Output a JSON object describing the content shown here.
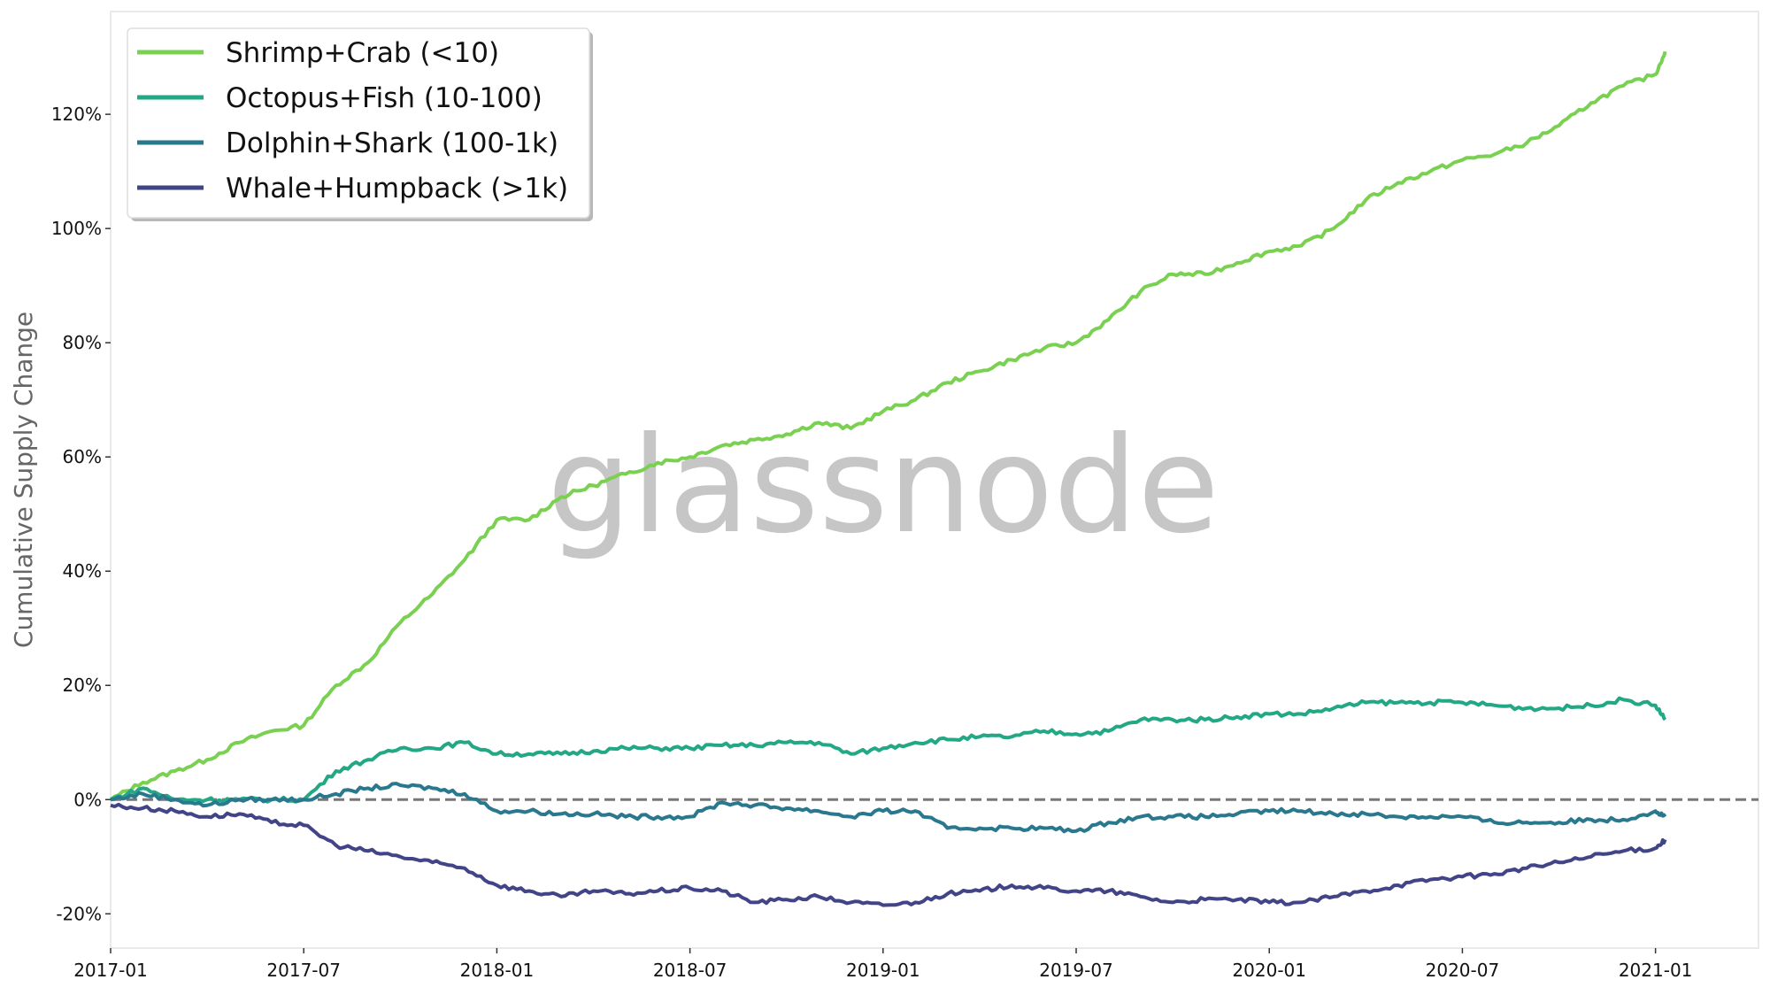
{
  "chart_data": {
    "type": "line",
    "title": "",
    "xlabel": "",
    "ylabel": "Cumulative Supply Change",
    "watermark": "glassnode",
    "x_unit": "months since 2017-01",
    "xlim": [
      0,
      51.2
    ],
    "ylim": [
      -26,
      138
    ],
    "x_ticks": [
      {
        "label": "2017-01",
        "month": 0
      },
      {
        "label": "2017-07",
        "month": 6
      },
      {
        "label": "2018-01",
        "month": 12
      },
      {
        "label": "2018-07",
        "month": 18
      },
      {
        "label": "2019-01",
        "month": 24
      },
      {
        "label": "2019-07",
        "month": 30
      },
      {
        "label": "2020-01",
        "month": 36
      },
      {
        "label": "2020-07",
        "month": 42
      },
      {
        "label": "2021-01",
        "month": 48
      }
    ],
    "y_ticks": [
      {
        "label": "-20%",
        "value": -20
      },
      {
        "label": "0%",
        "value": 0
      },
      {
        "label": "20%",
        "value": 20
      },
      {
        "label": "40%",
        "value": 40
      },
      {
        "label": "60%",
        "value": 60
      },
      {
        "label": "80%",
        "value": 80
      },
      {
        "label": "100%",
        "value": 100
      },
      {
        "label": "120%",
        "value": 120
      }
    ],
    "reference_line": {
      "value": 0,
      "style": "dashed",
      "color": "#777777"
    },
    "legend_position": "top-left",
    "series": [
      {
        "name": "Shrimp+Crab (<10)",
        "color": "#7ad151",
        "values": [
          0,
          3,
          5,
          7,
          10,
          12,
          13,
          20,
          24,
          31,
          36,
          42,
          49,
          49,
          53,
          55,
          57,
          59,
          60,
          62,
          63,
          64,
          66,
          65,
          68,
          70,
          73,
          75,
          77,
          79,
          80,
          84,
          89,
          92,
          92,
          94,
          96,
          97,
          100,
          105,
          108,
          110,
          112,
          113,
          115,
          118,
          122,
          125,
          127,
          131
        ]
      },
      {
        "name": "Octopus+Fish (10-100)",
        "color": "#22a884",
        "values": [
          0,
          2,
          0,
          0,
          0,
          0,
          0,
          5,
          7,
          9,
          9,
          10,
          8,
          8,
          8,
          8.5,
          9,
          9,
          9,
          9.5,
          9.5,
          10,
          10,
          8,
          9,
          10,
          10.5,
          11,
          11,
          12,
          11.5,
          12,
          14,
          14,
          14,
          14.5,
          15,
          15,
          16,
          17,
          17,
          17,
          17,
          16.5,
          16,
          16,
          16.5,
          17.5,
          16.5,
          14
        ]
      },
      {
        "name": "Dolphin+Shark (100-1k)",
        "color": "#2a788e",
        "values": [
          0,
          1,
          0,
          -1,
          0,
          0,
          0,
          1,
          2,
          2.5,
          2,
          1,
          -2,
          -2,
          -2.5,
          -2.5,
          -3,
          -3,
          -3,
          -0.5,
          -1,
          -1.5,
          -2,
          -3,
          -2,
          -2,
          -5,
          -5,
          -5,
          -5,
          -5.5,
          -4,
          -3,
          -3,
          -3,
          -2.5,
          -2,
          -2,
          -2.5,
          -2.5,
          -3,
          -3,
          -3,
          -4,
          -4,
          -4,
          -3.5,
          -3.5,
          -2,
          -3
        ]
      },
      {
        "name": "Whale+Humpback (>1k)",
        "color": "#414487",
        "values": [
          -1,
          -1.5,
          -2,
          -3,
          -2.5,
          -4,
          -4.5,
          -8,
          -9,
          -10,
          -11,
          -12,
          -15,
          -16,
          -17,
          -16,
          -16.5,
          -16,
          -15.5,
          -16,
          -18,
          -17.5,
          -17,
          -18,
          -18.5,
          -18,
          -16.5,
          -16,
          -15,
          -15.5,
          -16,
          -16,
          -17,
          -18,
          -17.5,
          -17.5,
          -18,
          -18,
          -17,
          -16,
          -15,
          -14,
          -13.5,
          -13,
          -12,
          -11,
          -10,
          -9,
          -8.5,
          -7
        ]
      }
    ]
  }
}
